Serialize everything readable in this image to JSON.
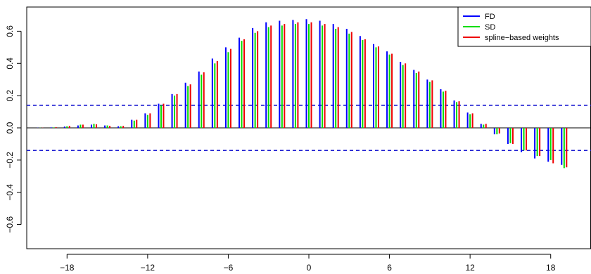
{
  "chart_data": {
    "type": "bar",
    "title": "",
    "xlabel": "",
    "ylabel": "",
    "xlim": [
      -21,
      21
    ],
    "ylim": [
      -0.75,
      0.75
    ],
    "x_ticks": [
      -18,
      -12,
      -6,
      0,
      6,
      12,
      18
    ],
    "y_ticks": [
      -0.6,
      -0.4,
      -0.2,
      0.0,
      0.2,
      0.4,
      0.6
    ],
    "x_tick_labels": [
      "−18",
      "−12",
      "−6",
      "0",
      "6",
      "12",
      "18"
    ],
    "y_tick_labels": [
      "−0.6",
      "−0.4",
      "−0.2",
      "0.0",
      "0.2",
      "0.4",
      "0.6"
    ],
    "reference_lines": [
      0.14,
      -0.14
    ],
    "reference_line_color": "#0000cc",
    "legend_position": "top-right",
    "x": [
      -20,
      -19,
      -18,
      -17,
      -16,
      -15,
      -14,
      -13,
      -12,
      -11,
      -10,
      -9,
      -8,
      -7,
      -6,
      -5,
      -4,
      -3,
      -2,
      -1,
      0,
      1,
      2,
      3,
      4,
      5,
      6,
      7,
      8,
      9,
      10,
      11,
      12,
      13,
      14,
      15,
      16,
      17,
      18,
      19
    ],
    "series": [
      {
        "name": "FD",
        "color": "#0000ff",
        "values": [
          0.001,
          0.003,
          0.008,
          0.015,
          0.02,
          0.015,
          0.01,
          0.05,
          0.09,
          0.15,
          0.21,
          0.28,
          0.35,
          0.43,
          0.5,
          0.56,
          0.62,
          0.655,
          0.665,
          0.67,
          0.675,
          0.665,
          0.645,
          0.615,
          0.57,
          0.52,
          0.475,
          0.41,
          0.36,
          0.3,
          0.24,
          0.17,
          0.095,
          0.025,
          -0.04,
          -0.1,
          -0.15,
          -0.19,
          -0.21,
          -0.23
        ]
      },
      {
        "name": "SD",
        "color": "#00dd00",
        "values": [
          0.001,
          0.003,
          0.01,
          0.02,
          0.025,
          0.015,
          0.01,
          0.045,
          0.08,
          0.14,
          0.2,
          0.26,
          0.33,
          0.4,
          0.47,
          0.54,
          0.59,
          0.625,
          0.635,
          0.645,
          0.645,
          0.635,
          0.615,
          0.585,
          0.545,
          0.5,
          0.455,
          0.39,
          0.34,
          0.285,
          0.225,
          0.16,
          0.085,
          0.02,
          -0.04,
          -0.095,
          -0.14,
          -0.175,
          -0.2,
          -0.25
        ]
      },
      {
        "name": "spline−based weights",
        "color": "#ee0000",
        "values": [
          0.001,
          0.004,
          0.012,
          0.02,
          0.022,
          0.012,
          0.012,
          0.05,
          0.09,
          0.15,
          0.21,
          0.27,
          0.345,
          0.415,
          0.49,
          0.55,
          0.6,
          0.635,
          0.645,
          0.655,
          0.655,
          0.645,
          0.625,
          0.595,
          0.55,
          0.505,
          0.46,
          0.4,
          0.35,
          0.295,
          0.23,
          0.165,
          0.09,
          0.025,
          -0.035,
          -0.1,
          -0.14,
          -0.175,
          -0.22,
          -0.245
        ]
      }
    ]
  }
}
